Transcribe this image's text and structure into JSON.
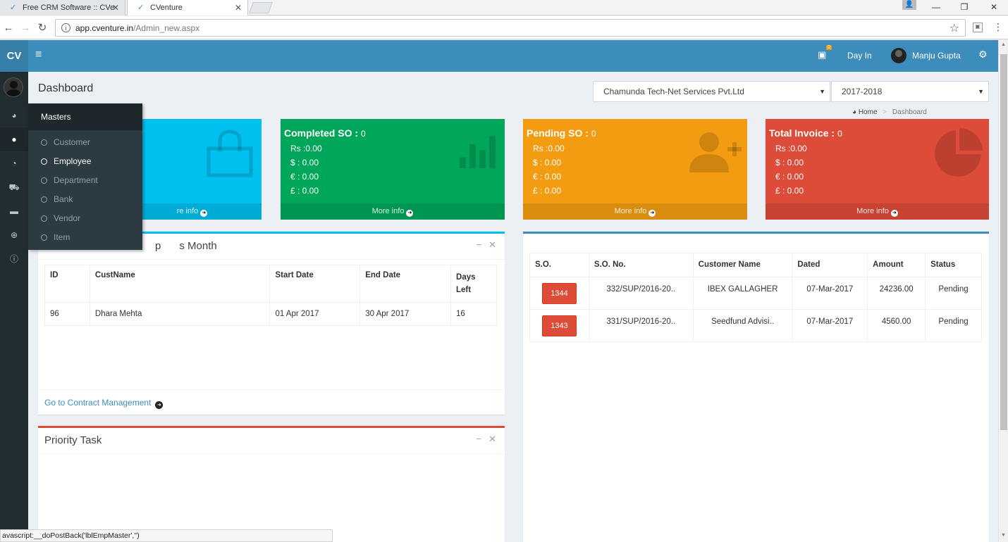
{
  "browser": {
    "tabs": [
      {
        "title": "Free CRM Software :: CVe",
        "active": false
      },
      {
        "title": "CVenture",
        "active": true
      }
    ],
    "url_host": "app.cventure.in",
    "url_path": "/Admin_new.aspx",
    "window_controls": {
      "minimize": "—",
      "restore": "❐",
      "close": "✕"
    },
    "status_text": "avascript:__doPostBack('lblEmpMaster','')"
  },
  "header": {
    "logo": "CV",
    "notification_badge": "0",
    "day_in": "Day In",
    "user_name": "Manju Gupta"
  },
  "sidebar": {
    "icons": [
      "dashboard-icon",
      "user-icon",
      "pie-chart-icon",
      "cart-icon",
      "credit-card-icon",
      "globe-icon",
      "info-icon"
    ]
  },
  "flyout": {
    "title": "Masters",
    "items": [
      "Customer",
      "Employee",
      "Department",
      "Bank",
      "Vendor",
      "Item"
    ],
    "active_index": 1
  },
  "page": {
    "title": "Dashboard",
    "company": "Chamunda Tech-Net Services Pvt.Ltd",
    "fiscal_year": "2017-2018",
    "breadcrumb": {
      "home": "Home",
      "current": "Dashboard"
    }
  },
  "info_boxes": [
    {
      "title": "",
      "count": "",
      "rs": "",
      "usd": "",
      "eur": "",
      "gbp": "",
      "more": "re info",
      "color": "#00c0ef",
      "icon": "shopping-bag-icon"
    },
    {
      "title": "Completed SO :",
      "count": "0",
      "rs": "Rs :0.00",
      "usd": "$ :  0.00",
      "eur": "€ :  0.00",
      "gbp": "£ :  0.00",
      "more": "More info",
      "color": "#00a65a",
      "icon": "bar-chart-icon"
    },
    {
      "title": "Pending SO :",
      "count": "0",
      "rs": "Rs :0.00",
      "usd": "$ :  0.00",
      "eur": "€ :  0.00",
      "gbp": "£ :  0.00",
      "more": "More info",
      "color": "#f39c12",
      "icon": "user-plus-icon"
    },
    {
      "title": "Total Invoice :",
      "count": "0",
      "rs": "Rs :0.00",
      "usd": "$ :  0.00",
      "eur": "€ :  0.00",
      "gbp": "£ :  0.00",
      "more": "More info",
      "color": "#dd4b39",
      "icon": "pie-chart-icon"
    }
  ],
  "contract_box": {
    "title": "...piring This Month",
    "title_visible": "s Month",
    "title_hidden_prefix": "p",
    "headers": [
      "ID",
      "CustName",
      "Start Date",
      "End Date",
      "Days Left"
    ],
    "rows": [
      {
        "id": "96",
        "cust": "Dhara Mehta",
        "start": "01 Apr 2017",
        "end": "30 Apr 2017",
        "days": "16"
      }
    ],
    "link": "Go to Contract Management"
  },
  "priority_box": {
    "title": "Priority Task"
  },
  "so_box": {
    "headers": [
      "S.O.",
      "S.O. No.",
      "Customer Name",
      "Dated",
      "Amount",
      "Status"
    ],
    "rows": [
      {
        "so": "1344",
        "so_no": "332/SUP/2016-20..",
        "customer": "IBEX GALLAGHER",
        "dated": "07-Mar-2017",
        "amount": "24236.00",
        "status": "Pending"
      },
      {
        "so": "1343",
        "so_no": "331/SUP/2016-20..",
        "customer": "Seedfund Advisi..",
        "dated": "07-Mar-2017",
        "amount": "4560.00",
        "status": "Pending"
      }
    ]
  }
}
